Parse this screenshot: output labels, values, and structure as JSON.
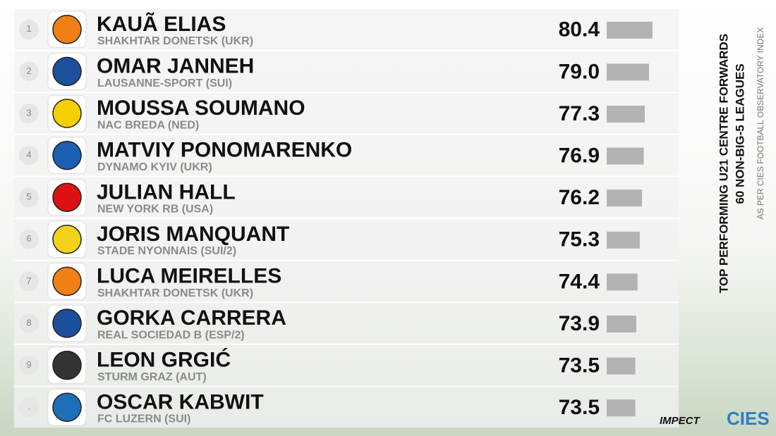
{
  "chart_data": {
    "type": "bar",
    "title": "TOP PERFORMING U21 CENTRE FORWARDS",
    "subtitle": "60 NON-BIG-5 LEAGUES",
    "note": "AS PER CIES FOOTBALL OBSERVATORY INDEX",
    "ranks": [
      "1",
      "2",
      "3",
      "4",
      "5",
      "6",
      "7",
      "8",
      "9",
      "."
    ],
    "categories": [
      "KAUÃ ELIAS",
      "OMAR JANNEH",
      "MOUSSA SOUMANO",
      "MATVIY PONOMARENKO",
      "JULIAN HALL",
      "JORIS MANQUANT",
      "LUCA MEIRELLES",
      "GORKA CARRERA",
      "LEON GRGIĆ",
      "OSCAR KABWIT"
    ],
    "teams": [
      "SHAKHTAR DONETSK (UKR)",
      "LAUSANNE-SPORT (SUI)",
      "NAC BREDA (NED)",
      "DYNAMO KYIV (UKR)",
      "NEW YORK RB (USA)",
      "STADE NYONNAIS (SUI/2)",
      "SHAKHTAR DONETSK (UKR)",
      "REAL SOCIEDAD B (ESP/2)",
      "STURM GRAZ (AUT)",
      "FC LUZERN (SUI)"
    ],
    "values": [
      80.4,
      79.0,
      77.3,
      76.9,
      76.2,
      75.3,
      74.4,
      73.9,
      73.5,
      73.5
    ],
    "value_labels": [
      "80.4",
      "79.0",
      "77.3",
      "76.9",
      "76.2",
      "75.3",
      "74.4",
      "73.9",
      "73.5",
      "73.5"
    ],
    "color": "#b3b3b3",
    "xlim": [
      62,
      81
    ],
    "brands": [
      "IMPECT",
      "CIES"
    ]
  }
}
